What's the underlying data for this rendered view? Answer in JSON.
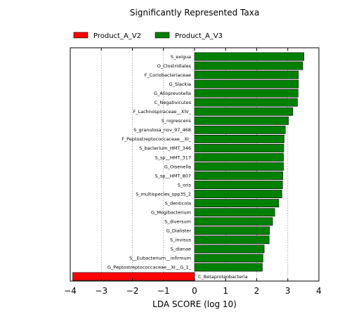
{
  "chart_data": {
    "type": "bar",
    "orientation": "horizontal",
    "title": "Significantly Represented Taxa",
    "xlabel": "LDA SCORE (log 10)",
    "ylabel": "",
    "xlim": [
      -4,
      4
    ],
    "xticks": [
      -4,
      -3,
      -2,
      -1,
      0,
      1,
      2,
      3,
      4
    ],
    "grid": "vertical dotted",
    "legend_position": "top",
    "colors": {
      "Product_A_V2": "#ff0000",
      "Product_A_V3": "#008000"
    },
    "legend": [
      {
        "name": "Product_A_V2",
        "color": "#ff0000"
      },
      {
        "name": "Product_A_V3",
        "color": "#008000"
      }
    ],
    "bars": [
      {
        "label": "S_exigua",
        "value": 3.52,
        "group": "Product_A_V3"
      },
      {
        "label": "O_Clostridiales",
        "value": 3.48,
        "group": "Product_A_V3"
      },
      {
        "label": "F_Coriobacteriaceae",
        "value": 3.34,
        "group": "Product_A_V3"
      },
      {
        "label": "G_Slackia",
        "value": 3.34,
        "group": "Product_A_V3"
      },
      {
        "label": "G_Alloprevotella",
        "value": 3.33,
        "group": "Product_A_V3"
      },
      {
        "label": "C_Negativicutes",
        "value": 3.31,
        "group": "Product_A_V3"
      },
      {
        "label": "F_Lachnospiraceae__XIV_",
        "value": 3.16,
        "group": "Product_A_V3"
      },
      {
        "label": "S_nigrescens",
        "value": 3.02,
        "group": "Product_A_V3"
      },
      {
        "label": "S_granulosa_nov_97_468",
        "value": 2.92,
        "group": "Product_A_V3"
      },
      {
        "label": "F_Peptostreptococcaceae__XI_",
        "value": 2.88,
        "group": "Product_A_V3"
      },
      {
        "label": "S_bacterium_HMT_346",
        "value": 2.87,
        "group": "Product_A_V3"
      },
      {
        "label": "S_sp__HMT_317",
        "value": 2.86,
        "group": "Product_A_V3"
      },
      {
        "label": "G_Oisenella",
        "value": 2.86,
        "group": "Product_A_V3"
      },
      {
        "label": "S_sp__HMT_807",
        "value": 2.84,
        "group": "Product_A_V3"
      },
      {
        "label": "S_oris",
        "value": 2.83,
        "group": "Product_A_V3"
      },
      {
        "label": "S_multispecies_spp35_2",
        "value": 2.81,
        "group": "Product_A_V3"
      },
      {
        "label": "S_denticola",
        "value": 2.71,
        "group": "Product_A_V3"
      },
      {
        "label": "G_Mogibacterium",
        "value": 2.58,
        "group": "Product_A_V3"
      },
      {
        "label": "S_diversum",
        "value": 2.51,
        "group": "Product_A_V3"
      },
      {
        "label": "G_Dialister",
        "value": 2.41,
        "group": "Product_A_V3"
      },
      {
        "label": "S_invisus",
        "value": 2.4,
        "group": "Product_A_V3"
      },
      {
        "label": "S_dianae",
        "value": 2.24,
        "group": "Product_A_V3"
      },
      {
        "label": "S__Eubacterium__infirmum",
        "value": 2.2,
        "group": "Product_A_V3"
      },
      {
        "label": "G_Peptostreptococcaceae__XI__G_1_",
        "value": 2.18,
        "group": "Product_A_V3"
      },
      {
        "label": "C_Betaproteobacteria",
        "value": -3.92,
        "group": "Product_A_V2"
      }
    ]
  }
}
